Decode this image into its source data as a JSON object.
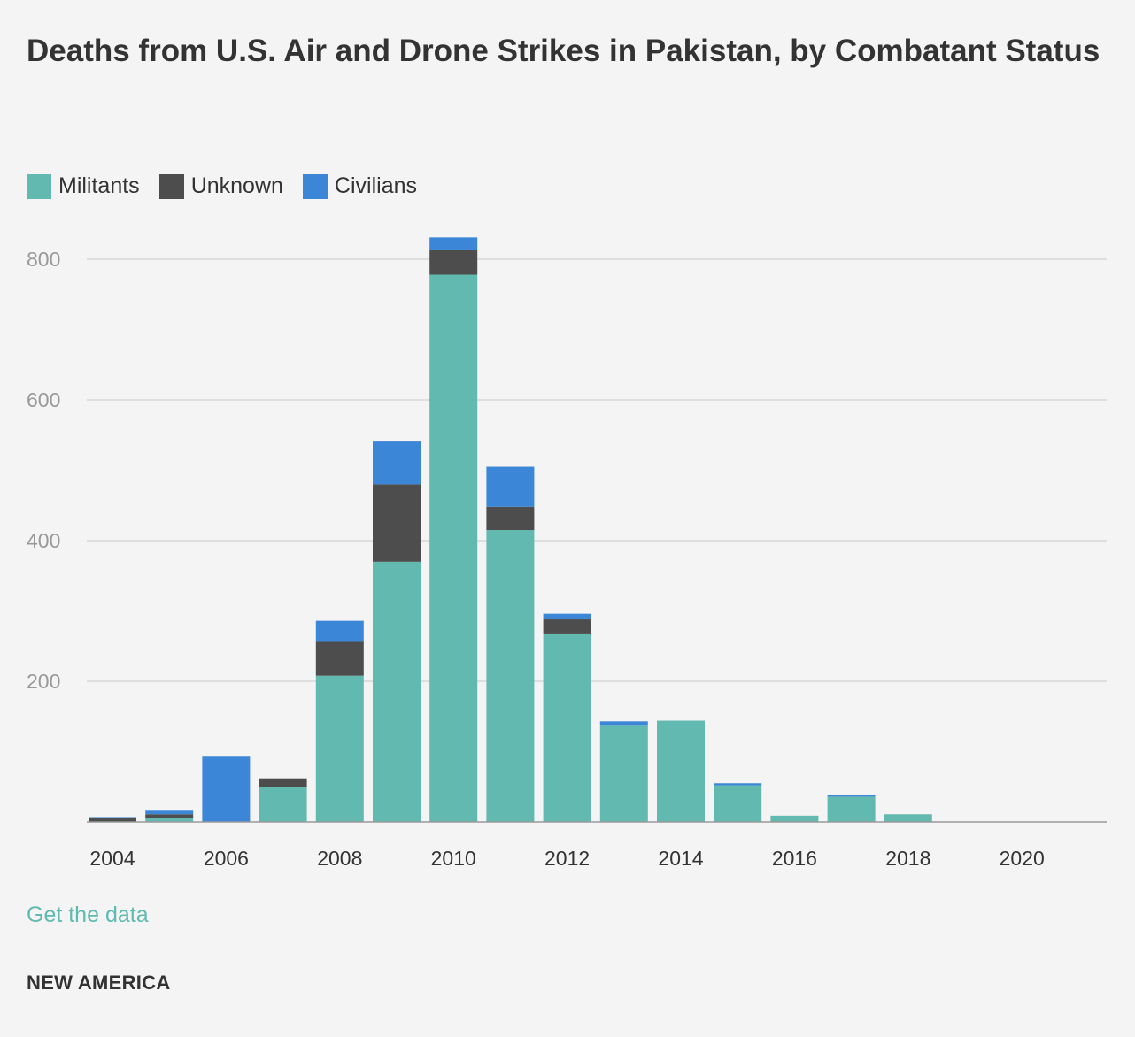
{
  "chart_data": {
    "type": "bar",
    "stacked": true,
    "title": "Deaths from U.S. Air and Drone Strikes in Pakistan, by Combatant Status",
    "categories": [
      "2004",
      "2005",
      "2006",
      "2007",
      "2008",
      "2009",
      "2010",
      "2011",
      "2012",
      "2013",
      "2014",
      "2015",
      "2016",
      "2017",
      "2018",
      "2019",
      "2020"
    ],
    "series": [
      {
        "name": "Militants",
        "color": "#61b9b0",
        "values": [
          0,
          5,
          0,
          50,
          208,
          370,
          778,
          415,
          268,
          138,
          144,
          52,
          9,
          36,
          11,
          0,
          0
        ]
      },
      {
        "name": "Unknown",
        "color": "#4d4d4d",
        "values": [
          5,
          6,
          0,
          12,
          48,
          110,
          35,
          33,
          20,
          0,
          0,
          0,
          0,
          0,
          0,
          0,
          0
        ]
      },
      {
        "name": "Civilians",
        "color": "#3b86d6",
        "values": [
          2,
          5,
          94,
          0,
          30,
          62,
          18,
          57,
          8,
          5,
          0,
          3,
          0,
          3,
          0,
          0,
          0
        ]
      }
    ],
    "x_tick_labels": [
      "2004",
      "2006",
      "2008",
      "2010",
      "2012",
      "2014",
      "2016",
      "2018",
      "2020"
    ],
    "y_tick_labels": [
      "200",
      "400",
      "600",
      "800"
    ],
    "y_ticks": [
      200,
      400,
      600,
      800
    ],
    "ylim": [
      0,
      850
    ],
    "grid": true,
    "legend_position": "top-left"
  },
  "links": {
    "get_data": "Get the data"
  },
  "footer": {
    "brand": "NEW AMERICA"
  }
}
